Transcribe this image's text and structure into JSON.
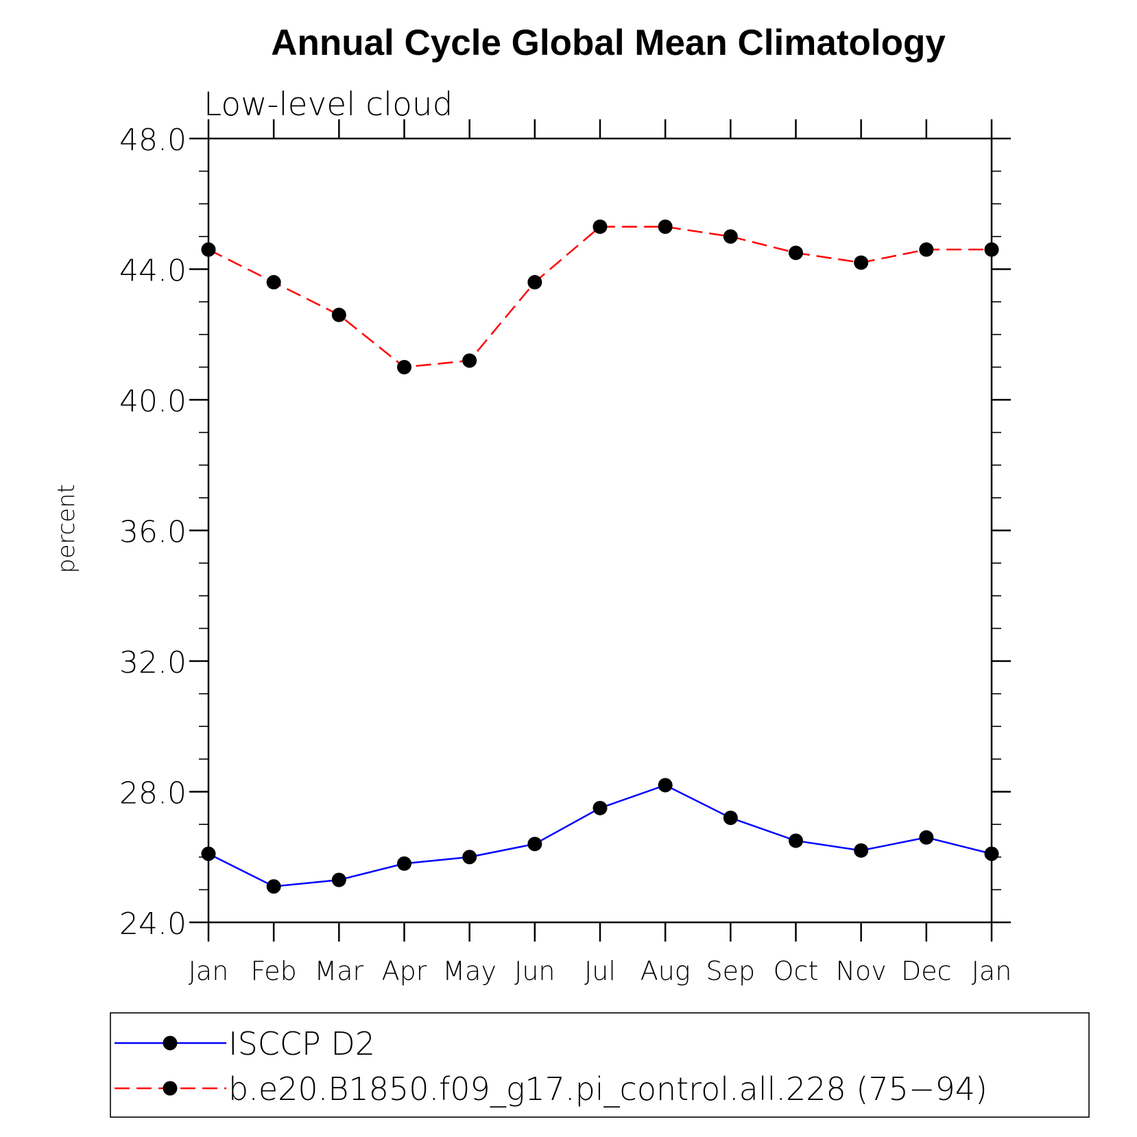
{
  "chart_data": {
    "type": "line",
    "title": "Annual Cycle Global Mean Climatology",
    "subtitle": "Low-level cloud",
    "xlabel": "",
    "ylabel": "percent",
    "categories": [
      "Jan",
      "Feb",
      "Mar",
      "Apr",
      "May",
      "Jun",
      "Jul",
      "Aug",
      "Sep",
      "Oct",
      "Nov",
      "Dec",
      "Jan"
    ],
    "ylim": [
      24.0,
      48.0
    ],
    "yticks": [
      "24.0",
      "28.0",
      "32.0",
      "36.0",
      "40.0",
      "44.0",
      "48.0"
    ],
    "ytick_values": [
      24,
      28,
      32,
      36,
      40,
      44,
      48
    ],
    "minor_tick_step": 1,
    "grid": false,
    "legend_position": "bottom",
    "series": [
      {
        "name": "ISCCP D2",
        "color": "#0000ff",
        "line_style": "solid",
        "marker": "filled-circle",
        "values": [
          26.1,
          25.1,
          25.3,
          25.8,
          26.0,
          26.4,
          27.5,
          28.2,
          27.2,
          26.5,
          26.2,
          26.6,
          26.1
        ]
      },
      {
        "name": "b.e20.B1850.f09_g17.pi_control.all.228 (75−94)",
        "color": "#ff0000",
        "line_style": "dashed",
        "marker": "filled-circle",
        "values": [
          44.6,
          43.6,
          42.6,
          41.0,
          41.2,
          43.6,
          45.3,
          45.3,
          45.0,
          44.5,
          44.2,
          44.6,
          44.6
        ]
      }
    ]
  }
}
